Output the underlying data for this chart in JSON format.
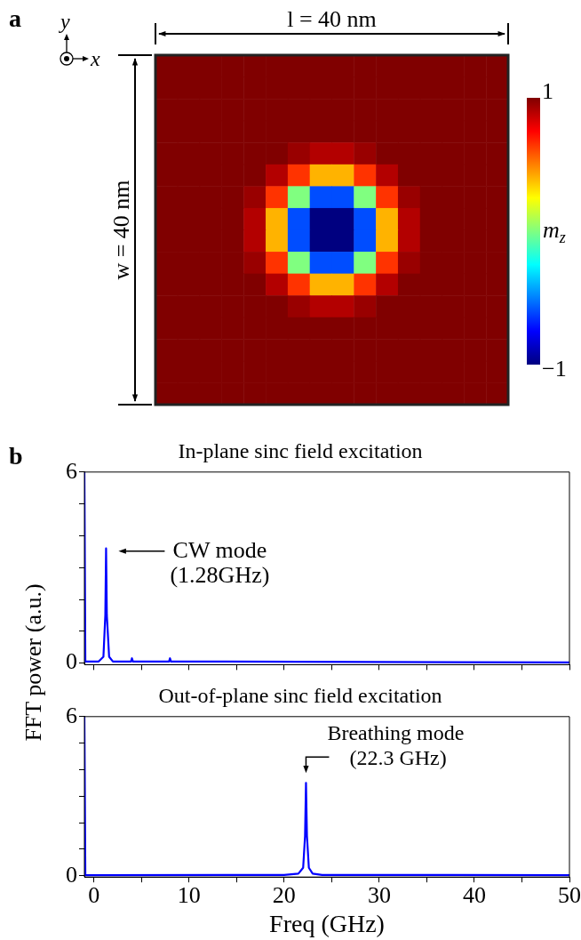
{
  "chart_data": [
    {
      "type": "heatmap",
      "xlabel": "l = 40 nm",
      "ylabel": "w = 40 nm",
      "clabel": "m$_{z}$",
      "annotations": [
        "a",
        "x",
        "y"
      ],
      "tick_labels": false,
      "categories": [
        null,
        null,
        null,
        null,
        null,
        null,
        null,
        null,
        null,
        null,
        null,
        null,
        null,
        null,
        null,
        null
      ],
      "y_categories": [
        null,
        null,
        null,
        null,
        null,
        null,
        null,
        null,
        null,
        null,
        null,
        null,
        null,
        null,
        null,
        null
      ],
      "clim": [
        -1,
        1
      ],
      "cticks": [
        {
          "value": -1,
          "label": "−1"
        },
        1
      ],
      "cells": [
        [
          1,
          1,
          1,
          1,
          1,
          1,
          1,
          1,
          1,
          1,
          1,
          1,
          1,
          1,
          1,
          1
        ],
        [
          1,
          1,
          1,
          1,
          1,
          1,
          1,
          1,
          1,
          1,
          1,
          1,
          1,
          1,
          1,
          1
        ],
        [
          1,
          1,
          1,
          1,
          1,
          1,
          1,
          1,
          1,
          1,
          1,
          1,
          1,
          1,
          1,
          1
        ],
        [
          1,
          1,
          1,
          1,
          1,
          1,
          1,
          1,
          1,
          1,
          1,
          1,
          1,
          1,
          1,
          1
        ],
        [
          1,
          1,
          1,
          1,
          1,
          1,
          0.95,
          0.9,
          0.9,
          0.95,
          1,
          1,
          1,
          1,
          1,
          1
        ],
        [
          1,
          1,
          1,
          1,
          1,
          0.9,
          0.65,
          0.4,
          0.4,
          0.65,
          0.9,
          1,
          1,
          1,
          1,
          1
        ],
        [
          1,
          1,
          1,
          1,
          0.95,
          0.65,
          0,
          -0.6,
          -0.6,
          0,
          0.65,
          0.95,
          1,
          1,
          1,
          1
        ],
        [
          1,
          1,
          1,
          1,
          0.9,
          0.4,
          -0.6,
          -1,
          -1,
          -0.6,
          0.4,
          0.9,
          1,
          1,
          1,
          1
        ],
        [
          1,
          1,
          1,
          1,
          0.9,
          0.4,
          -0.6,
          -1,
          -1,
          -0.6,
          0.4,
          0.9,
          1,
          1,
          1,
          1
        ],
        [
          1,
          1,
          1,
          1,
          0.95,
          0.65,
          0,
          -0.6,
          -0.6,
          0,
          0.65,
          0.95,
          1,
          1,
          1,
          1
        ],
        [
          1,
          1,
          1,
          1,
          1,
          0.9,
          0.65,
          0.4,
          0.4,
          0.65,
          0.9,
          1,
          1,
          1,
          1,
          1
        ],
        [
          1,
          1,
          1,
          1,
          1,
          1,
          0.95,
          0.9,
          0.9,
          0.95,
          1,
          1,
          1,
          1,
          1,
          1
        ],
        [
          1,
          1,
          1,
          1,
          1,
          1,
          1,
          1,
          1,
          1,
          1,
          1,
          1,
          1,
          1,
          1
        ],
        [
          1,
          1,
          1,
          1,
          1,
          1,
          1,
          1,
          1,
          1,
          1,
          1,
          1,
          1,
          1,
          1
        ],
        [
          1,
          1,
          1,
          1,
          1,
          1,
          1,
          1,
          1,
          1,
          1,
          1,
          1,
          1,
          1,
          1
        ],
        [
          1,
          1,
          1,
          1,
          1,
          1,
          1,
          1,
          1,
          1,
          1,
          1,
          1,
          1,
          1,
          1
        ]
      ]
    },
    {
      "type": "line",
      "title": "In-plane sinc field excitation",
      "ylabel": "FFT power (a.u.)",
      "tick_labels": "y",
      "marker": "none",
      "annotations": [
        "b",
        {
          "text": "CW mode\n(1.28GHz)",
          "x": 1.28,
          "y": 3.6
        }
      ],
      "xlim": [
        -1,
        50
      ],
      "xticks": [
        {
          "value": 0,
          "label": null
        },
        {
          "value": 5,
          "label": null
        },
        {
          "value": 10,
          "label": null
        },
        {
          "value": 15,
          "label": null
        },
        {
          "value": 20,
          "label": null
        },
        {
          "value": 25,
          "label": null
        },
        {
          "value": 30,
          "label": null
        },
        {
          "value": 35,
          "label": null
        },
        {
          "value": 40,
          "label": null
        },
        {
          "value": 45,
          "label": null
        },
        {
          "value": 50,
          "label": null
        }
      ],
      "ylim": [
        -0.05,
        6
      ],
      "yticks": [
        {
          "value": 0,
          "label": "0"
        },
        {
          "value": 1,
          "label": null
        },
        {
          "value": 2,
          "label": null
        },
        {
          "value": 3,
          "label": null
        },
        {
          "value": 4,
          "label": null
        },
        {
          "value": 5,
          "label": null
        },
        6
      ],
      "series": [
        {
          "color": "#0000ff",
          "x": [
            -1,
            -0.9,
            0.5,
            1.0,
            1.2,
            1.28,
            1.36,
            1.6,
            2.0,
            3.9,
            4.0,
            4.1,
            7.9,
            8.0,
            8.1,
            50
          ],
          "values": [
            6,
            0.05,
            0.05,
            0.2,
            1.5,
            3.6,
            1.5,
            0.2,
            0.05,
            0.05,
            0.15,
            0.05,
            0.05,
            0.15,
            0.05,
            0.02
          ]
        }
      ]
    },
    {
      "type": "line",
      "title": "Out-of-plane sinc field excitation",
      "xlabel": "Freq (GHz)",
      "marker": "none",
      "annotations": [
        {
          "text": "Breathing mode\n(22.3 GHz)",
          "x": 22.3,
          "y": 3.5
        }
      ],
      "xlim": [
        -1,
        50
      ],
      "xticks": [
        {
          "value": 0,
          "label": "0"
        },
        {
          "value": 5,
          "label": null
        },
        10,
        {
          "value": 15,
          "label": null
        },
        20,
        {
          "value": 25,
          "label": null
        },
        30,
        {
          "value": 35,
          "label": null
        },
        40,
        {
          "value": 45,
          "label": null
        },
        50
      ],
      "ylim": [
        -0.05,
        6
      ],
      "yticks": [
        {
          "value": 0,
          "label": "0"
        },
        {
          "value": 1,
          "label": null
        },
        {
          "value": 2,
          "label": null
        },
        {
          "value": 3,
          "label": null
        },
        {
          "value": 4,
          "label": null
        },
        {
          "value": 5,
          "label": null
        },
        6
      ],
      "series": [
        {
          "color": "#0000ff",
          "x": [
            -1,
            -0.9,
            20,
            21.5,
            22.0,
            22.2,
            22.3,
            22.4,
            22.6,
            23,
            24,
            50
          ],
          "values": [
            6,
            0.02,
            0.03,
            0.08,
            0.3,
            1.5,
            3.5,
            1.5,
            0.3,
            0.08,
            0.03,
            0.02
          ]
        }
      ]
    }
  ]
}
